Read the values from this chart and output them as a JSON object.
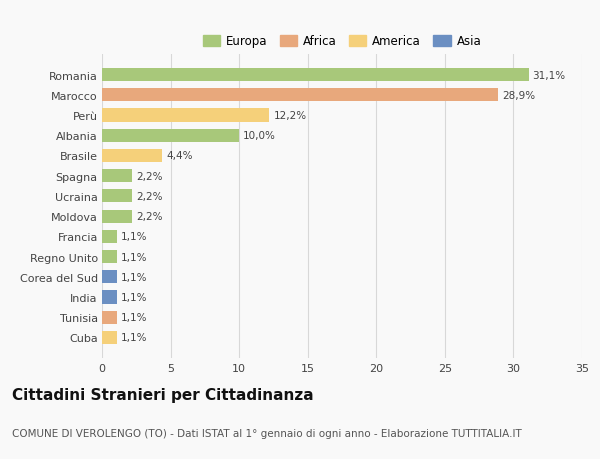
{
  "categories": [
    "Romania",
    "Marocco",
    "Perù",
    "Albania",
    "Brasile",
    "Spagna",
    "Ucraina",
    "Moldova",
    "Francia",
    "Regno Unito",
    "Corea del Sud",
    "India",
    "Tunisia",
    "Cuba"
  ],
  "values": [
    31.1,
    28.9,
    12.2,
    10.0,
    4.4,
    2.2,
    2.2,
    2.2,
    1.1,
    1.1,
    1.1,
    1.1,
    1.1,
    1.1
  ],
  "labels": [
    "31,1%",
    "28,9%",
    "12,2%",
    "10,0%",
    "4,4%",
    "2,2%",
    "2,2%",
    "2,2%",
    "1,1%",
    "1,1%",
    "1,1%",
    "1,1%",
    "1,1%",
    "1,1%"
  ],
  "colors": [
    "#a8c87a",
    "#e8a87c",
    "#f5d07a",
    "#a8c87a",
    "#f5d07a",
    "#a8c87a",
    "#a8c87a",
    "#a8c87a",
    "#a8c87a",
    "#a8c87a",
    "#6b8fc2",
    "#6b8fc2",
    "#e8a87c",
    "#f5d07a"
  ],
  "legend_labels": [
    "Europa",
    "Africa",
    "America",
    "Asia"
  ],
  "legend_colors": [
    "#a8c87a",
    "#e8a87c",
    "#f5d07a",
    "#6b8fc2"
  ],
  "title": "Cittadini Stranieri per Cittadinanza",
  "subtitle": "COMUNE DI VEROLENGO (TO) - Dati ISTAT al 1° gennaio di ogni anno - Elaborazione TUTTITALIA.IT",
  "xlim": [
    0,
    35
  ],
  "xticks": [
    0,
    5,
    10,
    15,
    20,
    25,
    30,
    35
  ],
  "background_color": "#f9f9f9",
  "bar_height": 0.65,
  "grid_color": "#d8d8d8",
  "title_fontsize": 11,
  "subtitle_fontsize": 7.5,
  "label_fontsize": 7.5,
  "ytick_fontsize": 8,
  "xtick_fontsize": 8,
  "legend_fontsize": 8.5
}
